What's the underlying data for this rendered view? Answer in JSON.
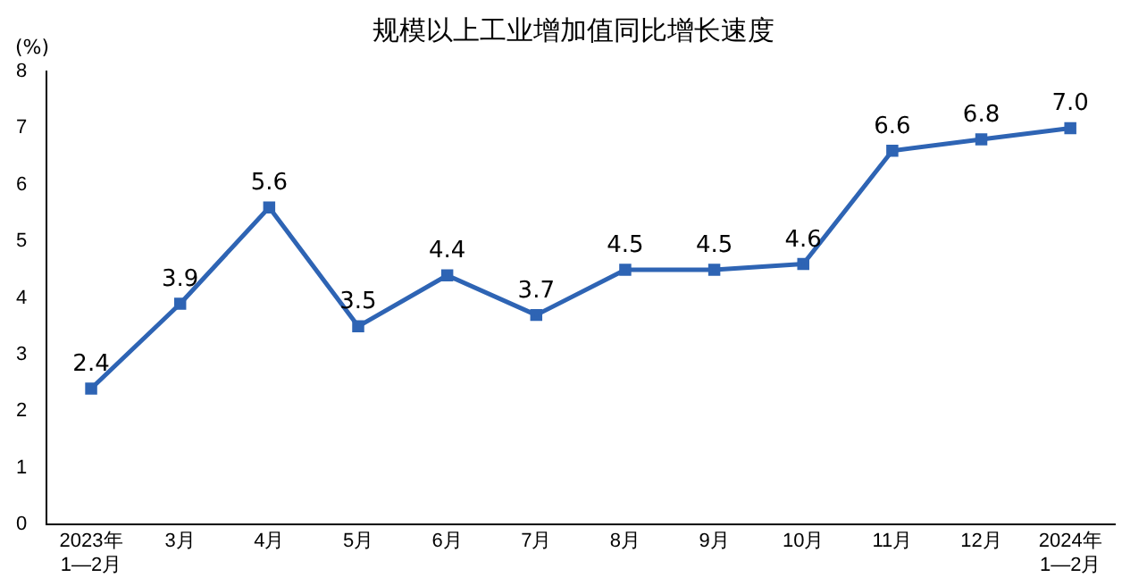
{
  "chart_data": {
    "type": "line",
    "title": "规模以上工业增加值同比增长速度",
    "ylabel": "(%)",
    "categories": [
      "2023年\n1—2月",
      "3月",
      "4月",
      "5月",
      "6月",
      "7月",
      "8月",
      "9月",
      "10月",
      "11月",
      "12月",
      "2024年\n1—2月"
    ],
    "series": [
      {
        "color": "#2e64b4",
        "values": [
          2.4,
          3.9,
          5.6,
          3.5,
          4.4,
          3.7,
          4.5,
          4.5,
          4.6,
          6.6,
          6.8,
          7.0
        ],
        "value_labels": [
          "2.4",
          "3.9",
          "5.6",
          "3.5",
          "4.4",
          "3.7",
          "4.5",
          "4.5",
          "4.6",
          "6.6",
          "6.8",
          "7.0"
        ]
      }
    ],
    "ylim": [
      0,
      8
    ],
    "yticks": [
      0,
      1,
      2,
      3,
      4,
      5,
      6,
      7,
      8
    ],
    "grid": false,
    "legend": false,
    "marker": "square",
    "line_style": "solid"
  }
}
